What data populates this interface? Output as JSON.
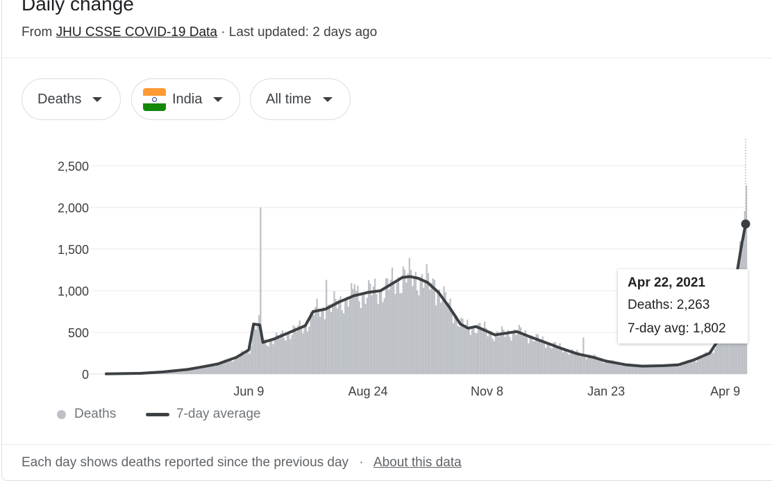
{
  "header": {
    "title": "Daily change",
    "source_prefix": "From",
    "source_link": "JHU CSSE COVID-19 Data",
    "updated": "· Last updated: 2 days ago"
  },
  "filters": {
    "metric": "Deaths",
    "country": "India",
    "range": "All time"
  },
  "legend": {
    "bars": "Deaths",
    "line": "7-day average"
  },
  "tooltip": {
    "date": "Apr 22, 2021",
    "deaths": "Deaths: 2,263",
    "avg": "7-day avg: 1,802"
  },
  "footer": {
    "note": "Each day shows deaths reported since the previous day",
    "separator": "·",
    "link": "About this data"
  },
  "colors": {
    "bars": "#bdc1c6",
    "line": "#3c4043",
    "grid": "#e8eaed"
  },
  "chart_data": {
    "type": "bar",
    "title": "Daily change",
    "ylim": [
      0,
      2800
    ],
    "yticks": [
      0,
      500,
      1000,
      1500,
      2000,
      2500
    ],
    "ytick_labels": [
      "0",
      "500",
      "1,000",
      "1,500",
      "2,000",
      "2,500"
    ],
    "xticks": [
      "Jun 9",
      "Aug 24",
      "Nov 8",
      "Jan 23",
      "Apr 9"
    ],
    "grid": true,
    "legend_position": "bottom",
    "daily_series_name": "Deaths",
    "avg_series_name": "7-day average",
    "start_date": "2020-03-10",
    "end_date": "2021-04-22",
    "xtick_dates": [
      "2020-06-09",
      "2020-08-24",
      "2020-11-08",
      "2021-01-23",
      "2021-04-09"
    ],
    "avg_points": [
      [
        "2020-03-10",
        2
      ],
      [
        "2020-04-01",
        8
      ],
      [
        "2020-04-15",
        25
      ],
      [
        "2020-05-01",
        55
      ],
      [
        "2020-05-10",
        85
      ],
      [
        "2020-05-20",
        120
      ],
      [
        "2020-06-01",
        200
      ],
      [
        "2020-06-09",
        290
      ],
      [
        "2020-06-12",
        600
      ],
      [
        "2020-06-16",
        590
      ],
      [
        "2020-06-18",
        380
      ],
      [
        "2020-06-25",
        420
      ],
      [
        "2020-07-05",
        500
      ],
      [
        "2020-07-15",
        580
      ],
      [
        "2020-07-20",
        750
      ],
      [
        "2020-07-28",
        780
      ],
      [
        "2020-08-05",
        860
      ],
      [
        "2020-08-15",
        940
      ],
      [
        "2020-08-24",
        980
      ],
      [
        "2020-09-01",
        1000
      ],
      [
        "2020-09-08",
        1080
      ],
      [
        "2020-09-15",
        1160
      ],
      [
        "2020-09-20",
        1170
      ],
      [
        "2020-09-25",
        1150
      ],
      [
        "2020-10-01",
        1100
      ],
      [
        "2020-10-08",
        980
      ],
      [
        "2020-10-15",
        800
      ],
      [
        "2020-10-22",
        600
      ],
      [
        "2020-10-27",
        550
      ],
      [
        "2020-11-01",
        570
      ],
      [
        "2020-11-06",
        530
      ],
      [
        "2020-11-13",
        470
      ],
      [
        "2020-11-20",
        490
      ],
      [
        "2020-11-27",
        510
      ],
      [
        "2020-12-05",
        450
      ],
      [
        "2020-12-15",
        380
      ],
      [
        "2020-12-25",
        310
      ],
      [
        "2021-01-05",
        240
      ],
      [
        "2021-01-15",
        200
      ],
      [
        "2021-01-23",
        155
      ],
      [
        "2021-02-05",
        110
      ],
      [
        "2021-02-15",
        95
      ],
      [
        "2021-02-28",
        100
      ],
      [
        "2021-03-10",
        110
      ],
      [
        "2021-03-20",
        170
      ],
      [
        "2021-03-30",
        250
      ],
      [
        "2021-04-05",
        420
      ],
      [
        "2021-04-10",
        700
      ],
      [
        "2021-04-15",
        1050
      ],
      [
        "2021-04-19",
        1500
      ],
      [
        "2021-04-22",
        1802
      ]
    ],
    "spikes": [
      [
        "2020-06-16",
        2003
      ],
      [
        "2020-07-28",
        1130
      ],
      [
        "2020-08-15",
        1080
      ],
      [
        "2020-09-15",
        1290
      ],
      [
        "2020-10-05",
        1130
      ],
      [
        "2021-01-08",
        440
      ],
      [
        "2021-04-22",
        2263
      ]
    ],
    "tooltip_point": {
      "date": "2021-04-22",
      "deaths": 2263,
      "avg": 1802
    }
  }
}
